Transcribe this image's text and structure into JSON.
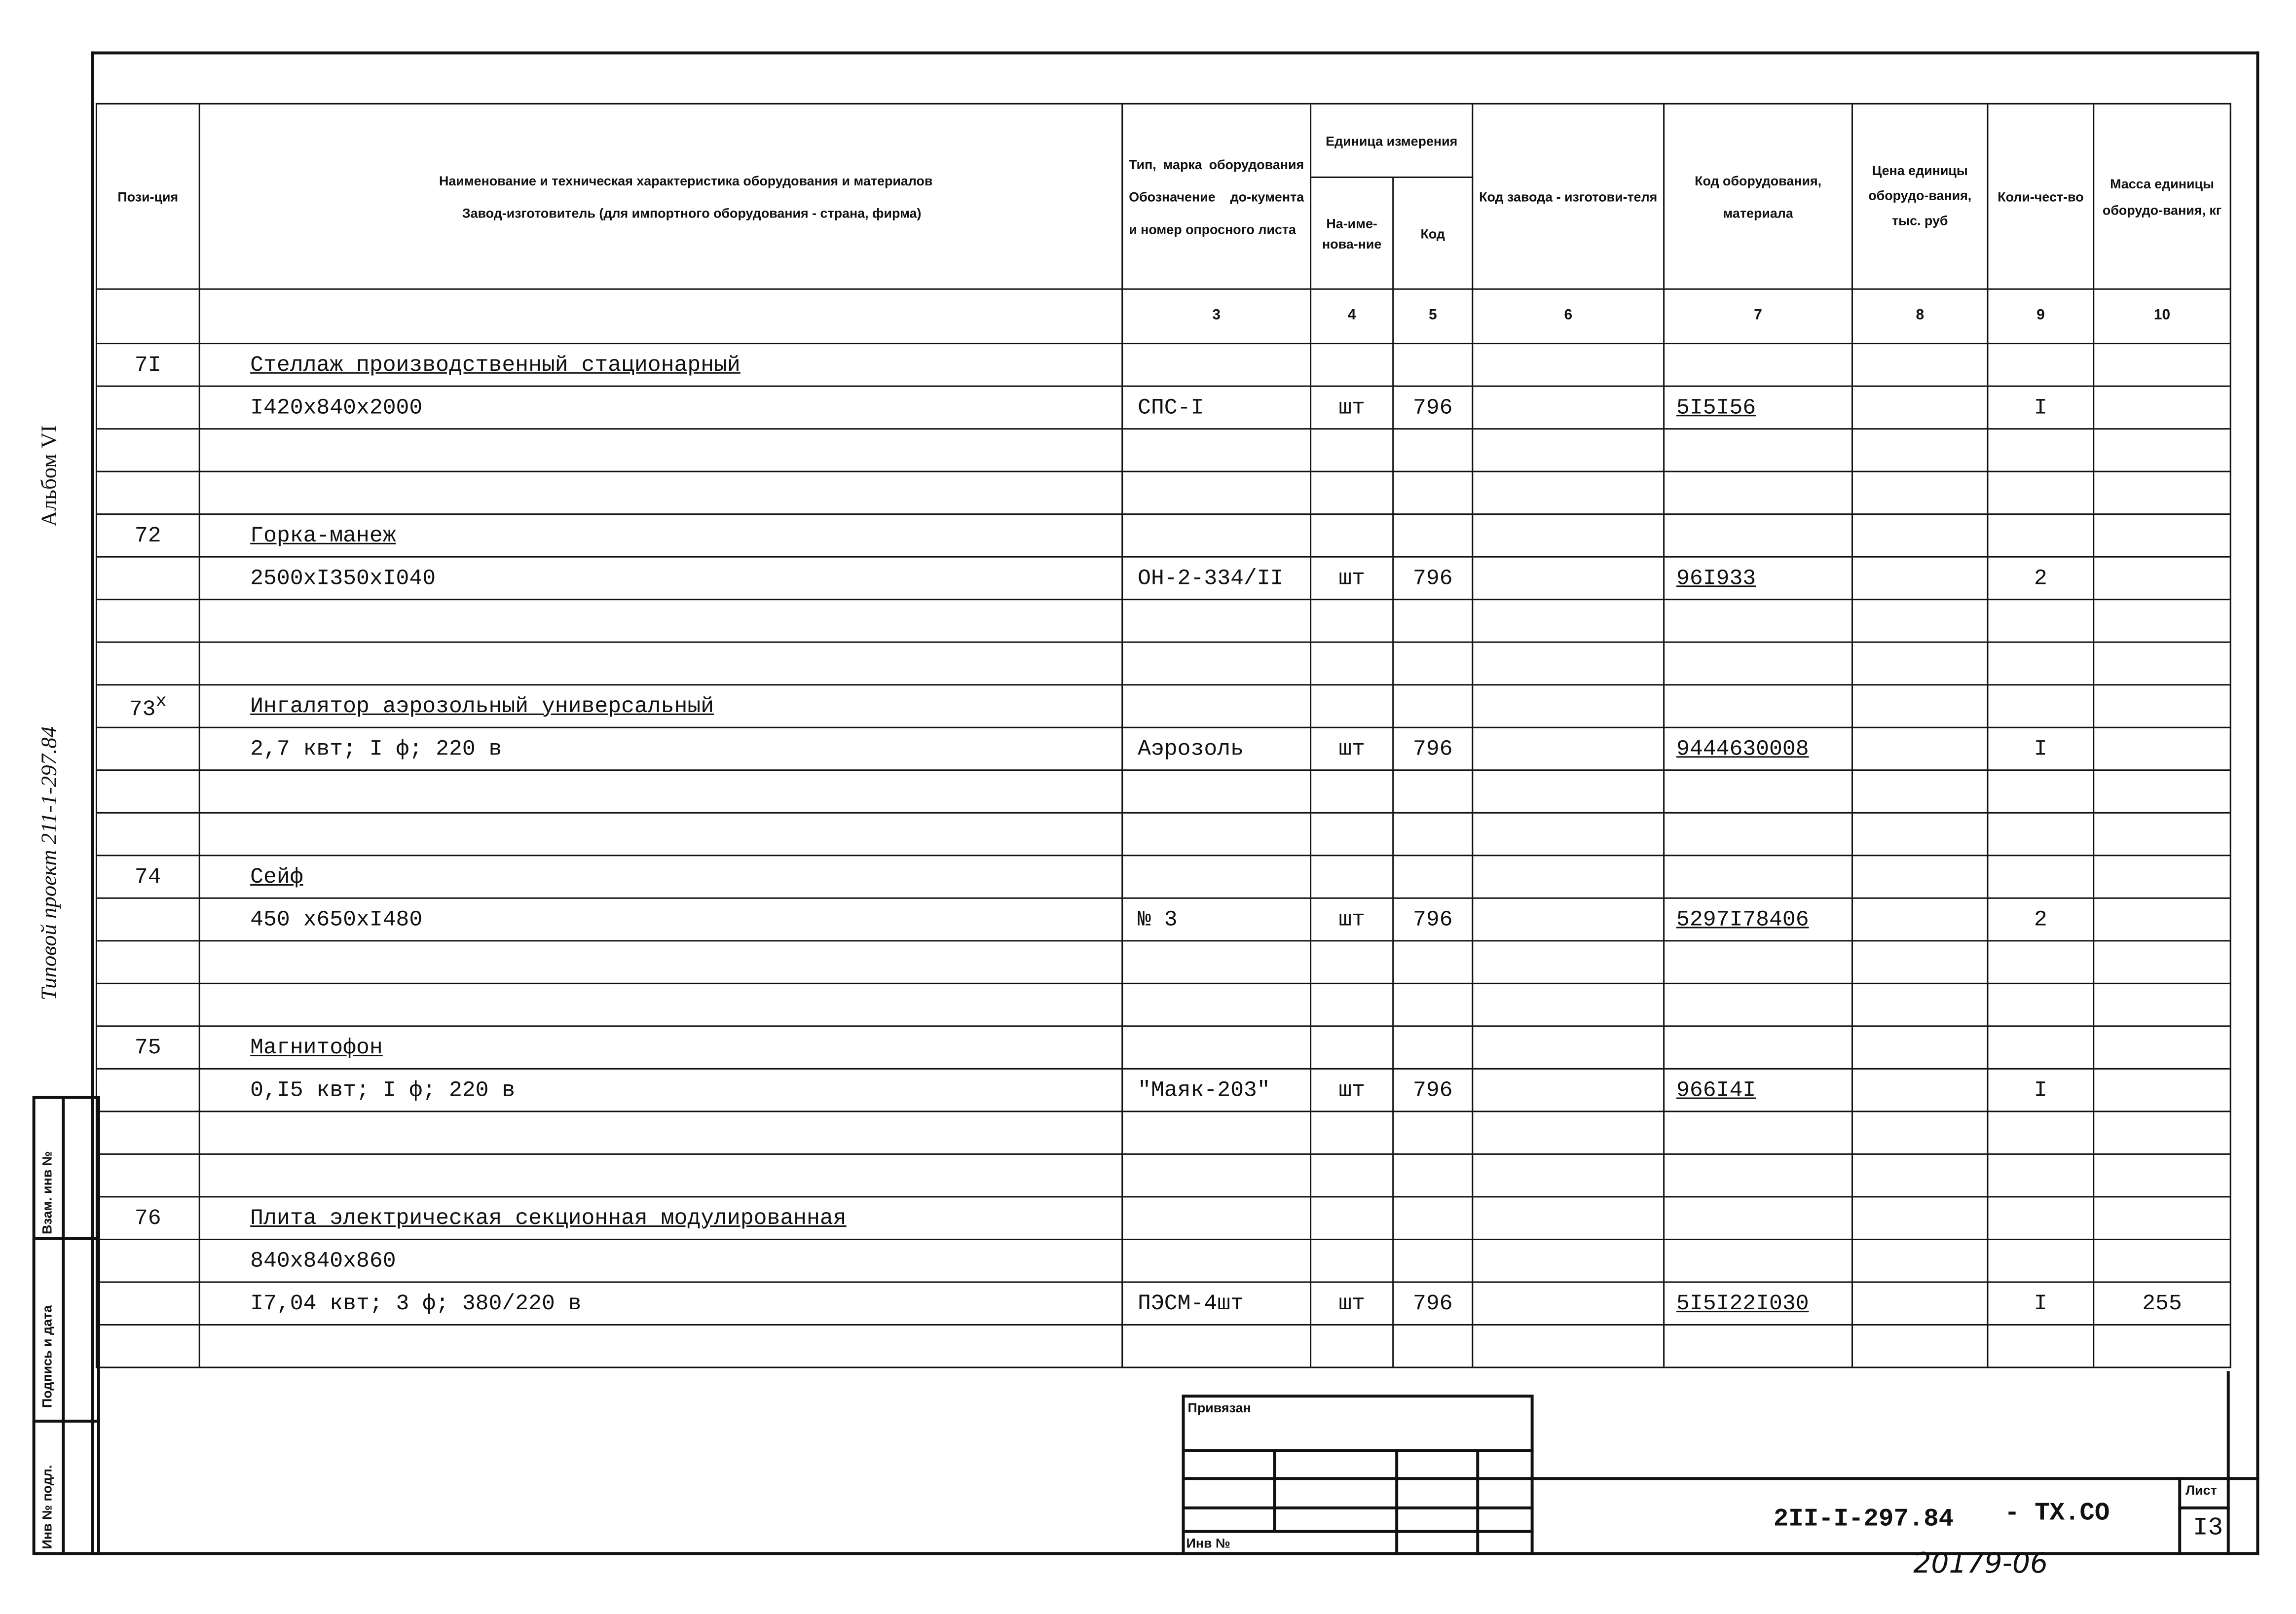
{
  "side": {
    "album": "Альбом VI",
    "project": "Типовой проект 211-1-297.84",
    "stamp": [
      "Взам. инв №",
      "Подпись и дата",
      "Инв № подл."
    ]
  },
  "header": {
    "position": "Пози-ция",
    "name_line1": "Наименование и техническая характеристика оборудования и материалов",
    "name_line2": "Завод-изготовитель (для импортного оборудования - страна, фирма)",
    "type": "Тип, марка оборудования Обозначение до-кумента и номер опросного листа",
    "unit": "Единица измерения",
    "unit_name": "На-име-нова-ние",
    "unit_code": "Код",
    "factory_code": "Код завода - изготови-теля",
    "material_code": "Код оборудования, материала",
    "price": "Цена единицы оборудо-вания, тыс. руб",
    "qty": "Коли-чест-во",
    "mass": "Масса единицы оборудо-вания, кг"
  },
  "col_numbers": [
    "",
    "",
    "3",
    "4",
    "5",
    "6",
    "7",
    "8",
    "9",
    "10"
  ],
  "items": [
    {
      "pos": "7I",
      "sup": "",
      "lines": [
        "Стеллаж производственный стационарный",
        "I420х840х2000"
      ],
      "type": "СПС-I",
      "unit": "шт",
      "code": "796",
      "factory": "",
      "material": "5I5I56",
      "price": "",
      "qty": "I",
      "mass": ""
    },
    {
      "pos": "72",
      "sup": "",
      "lines": [
        "Горка-манеж",
        "2500хI350хI040"
      ],
      "type": "ОН-2-334/II",
      "unit": "шт",
      "code": "796",
      "factory": "",
      "material": "96I933",
      "price": "",
      "qty": "2",
      "mass": ""
    },
    {
      "pos": "73",
      "sup": "х",
      "lines": [
        "Ингалятор аэрозольный универсальный",
        "2,7 квт; I ф; 220 в"
      ],
      "type": "Аэрозоль",
      "unit": "шт",
      "code": "796",
      "factory": "",
      "material": "9444630008",
      "price": "",
      "qty": "I",
      "mass": ""
    },
    {
      "pos": "74",
      "sup": "",
      "lines": [
        "Сейф",
        "450 х650хI480"
      ],
      "type": "№ 3",
      "unit": "шт",
      "code": "796",
      "factory": "",
      "material": "5297I78406",
      "price": "",
      "qty": "2",
      "mass": ""
    },
    {
      "pos": "75",
      "sup": "",
      "lines": [
        "Магнитофон",
        "0,I5 квт; I ф; 220 в"
      ],
      "type": "\"Маяк-203\"",
      "unit": "шт",
      "code": "796",
      "factory": "",
      "material": "966I4I",
      "price": "",
      "qty": "I",
      "mass": ""
    },
    {
      "pos": "76",
      "sup": "",
      "lines": [
        "Плита электрическая секционная модулированная",
        "840х840х860",
        "I7,04 квт; 3 ф; 380/220 в"
      ],
      "type": "ПЭСМ-4шт",
      "unit": "шт",
      "code": "796",
      "factory": "",
      "material": "5I5I22I030",
      "price": "",
      "qty": "I",
      "mass": "255"
    }
  ],
  "title_block": {
    "privyazan": "Привязан",
    "inv": "Инв №",
    "doc_code": "2II-I-297.84",
    "suffix": "- ТХ.СО",
    "sheet_label": "Лист",
    "sheet": "I3"
  },
  "handwritten": "20179-06"
}
